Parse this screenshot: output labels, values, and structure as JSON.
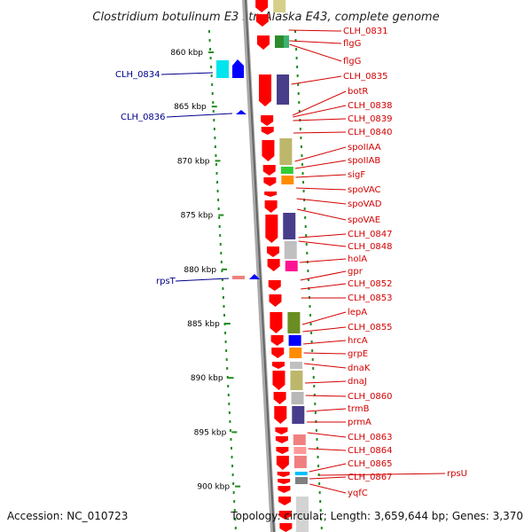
{
  "title": "Clostridium botulinum E3 str. Alaska E43, complete genome",
  "footer": {
    "accession": "Accession: NC_010723",
    "topology": "Topology: circular; Length: 3,659,644 bp; Genes: 3,370"
  },
  "scale_labels": [
    "860 kbp",
    "865 kbp",
    "870 kbp",
    "875 kbp",
    "880 kbp",
    "885 kbp",
    "890 kbp",
    "895 kbp",
    "900 kbp"
  ],
  "right_labels": [
    "CLH_0831",
    "flgG",
    "flgG",
    "CLH_0835",
    "botR",
    "CLH_0838",
    "CLH_0839",
    "CLH_0840",
    "spoIIAA",
    "spoIIAB",
    "sigF",
    "spoVAC",
    "spoVAD",
    "spoVAE",
    "CLH_0847",
    "CLH_0848",
    "holA",
    "gpr",
    "CLH_0852",
    "CLH_0853",
    "lepA",
    "CLH_0855",
    "hrcA",
    "grpE",
    "dnaK",
    "dnaJ",
    "CLH_0860",
    "trmB",
    "prmA",
    "CLH_0863",
    "CLH_0864",
    "CLH_0865",
    "CLH_0867",
    "yqfC"
  ],
  "far_right_labels": [
    "rpsU"
  ],
  "left_labels": [
    "CLH_0834",
    "CLH_0836",
    "rpsT"
  ],
  "colors": {
    "forward_gene": "#ff0000",
    "label_right": "#d40000",
    "label_left": "#00008b",
    "tick": "#228b22",
    "backbone": "#999999",
    "reverse_gene": "#0000ff",
    "reverse_gene_alt": "#00e5ee"
  }
}
